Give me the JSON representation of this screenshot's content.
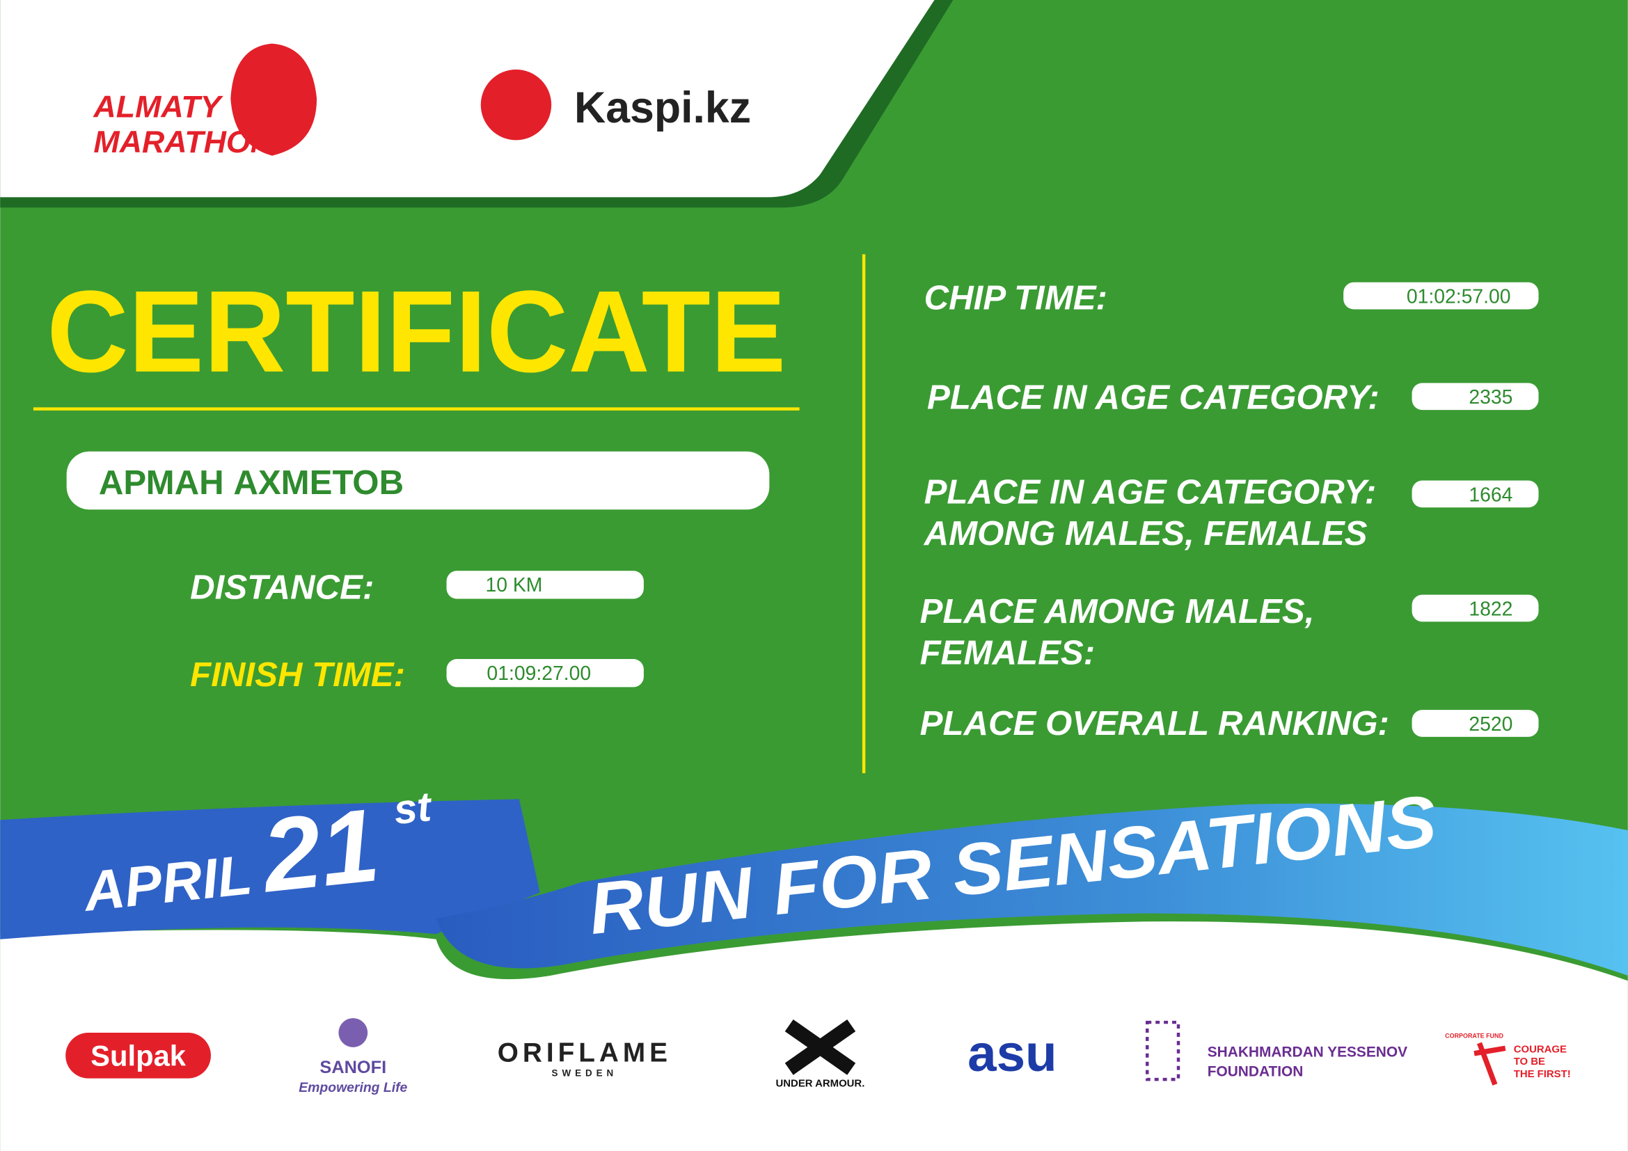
{
  "header": {
    "logo_left": [
      "ALMATY",
      "MARATHON"
    ],
    "logo_right": "Kaspi.kz"
  },
  "certificate": {
    "title": "CERTIFICATE",
    "name": "АРМАН АХМЕТОВ",
    "fields": [
      {
        "label": "DISTANCE:",
        "value": "10 KM"
      },
      {
        "label": "FINISH TIME:",
        "value": "01:09:27.00"
      }
    ]
  },
  "results": [
    {
      "label": [
        "CHIP TIME:"
      ],
      "value": "01:02:57.00"
    },
    {
      "label": [
        "PLACE IN AGE CATEGORY:"
      ],
      "value": "2335"
    },
    {
      "label": [
        "PLACE IN AGE CATEGORY:",
        "AMONG MALES, FEMALES"
      ],
      "value": "1664"
    },
    {
      "label": [
        "PLACE AMONG MALES,",
        "FEMALES:"
      ],
      "value": "1822"
    },
    {
      "label": [
        "PLACE OVERALL RANKING:"
      ],
      "value": "2520"
    }
  ],
  "banner": {
    "month": "APRIL",
    "day": "21",
    "suffix": "st",
    "slogan": "RUN FOR SENSATIONS"
  },
  "sponsors": {
    "sulpak": "Sulpak",
    "sanofi": [
      "SANOFI",
      "Empowering Life"
    ],
    "oriflame": [
      "ORIFLAME",
      "SWEDEN"
    ],
    "under_armour": "UNDER ARMOUR.",
    "asu": "asu",
    "yessenov": [
      "SHAKHMARDAN YESSENOV",
      "FOUNDATION"
    ],
    "courage": [
      "CORPORATE FUND",
      "COURAGE",
      "TO BE",
      "THE FIRST!"
    ]
  }
}
